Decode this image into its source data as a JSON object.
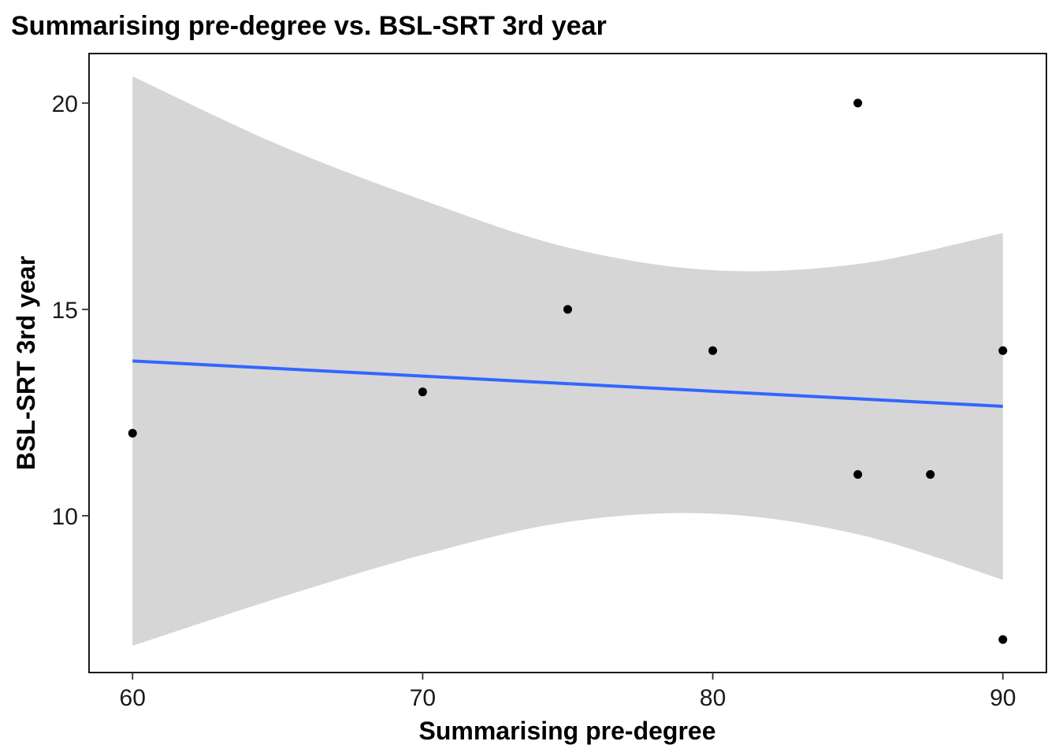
{
  "chart_data": {
    "type": "scatter",
    "title": "Summarising pre-degree vs. BSL-SRT 3rd year",
    "xlabel": "Summarising pre-degree",
    "ylabel": "BSL-SRT 3rd year",
    "xlim": [
      58.5,
      91.5
    ],
    "ylim": [
      6.2,
      21.2
    ],
    "x_ticks": [
      60,
      70,
      80,
      90
    ],
    "y_ticks": [
      10,
      15,
      20
    ],
    "x_tick_labels": [
      "60",
      "70",
      "80",
      "90"
    ],
    "y_tick_labels": [
      "10",
      "15",
      "20"
    ],
    "grid": false,
    "points": [
      {
        "x": 60,
        "y": 12
      },
      {
        "x": 70,
        "y": 13
      },
      {
        "x": 75,
        "y": 15
      },
      {
        "x": 80,
        "y": 14
      },
      {
        "x": 85,
        "y": 20
      },
      {
        "x": 85,
        "y": 11
      },
      {
        "x": 87.5,
        "y": 11
      },
      {
        "x": 90,
        "y": 14
      },
      {
        "x": 90,
        "y": 7
      }
    ],
    "fit_line": {
      "method": "linear",
      "x": [
        60,
        90
      ],
      "y": [
        13.75,
        12.65
      ],
      "color": "#3366ff"
    },
    "confidence_band": {
      "color": "#d6d6d6",
      "x": [
        60,
        65,
        70,
        75,
        80,
        85,
        90
      ],
      "upper": [
        20.65,
        19.0,
        17.65,
        16.5,
        15.95,
        16.1,
        16.85
      ],
      "lower": [
        6.85,
        8.0,
        9.05,
        9.85,
        10.05,
        9.55,
        8.45
      ]
    },
    "point_color": "#000000"
  }
}
